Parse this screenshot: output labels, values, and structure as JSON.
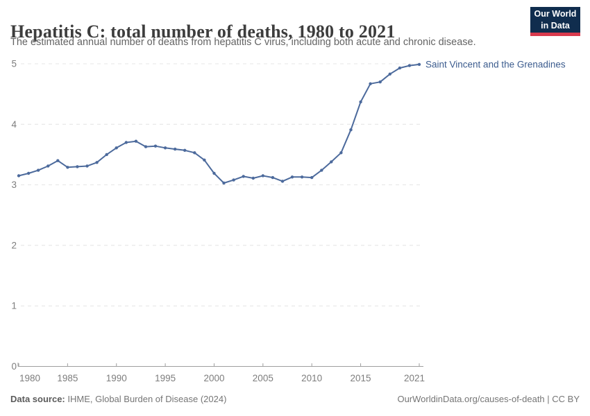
{
  "header": {
    "title": "Hepatitis C: total number of deaths, 1980 to 2021",
    "subtitle": "The estimated annual number of deaths from hepatitis C virus, including both acute and chronic disease.",
    "logo": {
      "line1": "Our World",
      "line2": "in Data",
      "bg_color": "#102d4e",
      "accent_color": "#d93a4e"
    }
  },
  "chart_data": {
    "type": "line",
    "title": "Hepatitis C: total number of deaths, 1980 to 2021",
    "xlabel": "",
    "ylabel": "",
    "xlim": [
      1980,
      2021
    ],
    "ylim": [
      0,
      5
    ],
    "xticks": [
      1980,
      1985,
      1990,
      1995,
      2000,
      2005,
      2010,
      2015,
      2021
    ],
    "yticks": [
      0,
      1,
      2,
      3,
      4,
      5
    ],
    "grid": "horizontal-dashed",
    "legend": "inline-end-label",
    "x": [
      1980,
      1981,
      1982,
      1983,
      1984,
      1985,
      1986,
      1987,
      1988,
      1989,
      1990,
      1991,
      1992,
      1993,
      1994,
      1995,
      1996,
      1997,
      1998,
      1999,
      2000,
      2001,
      2002,
      2003,
      2004,
      2005,
      2006,
      2007,
      2008,
      2009,
      2010,
      2011,
      2012,
      2013,
      2014,
      2015,
      2016,
      2017,
      2018,
      2019,
      2020,
      2021
    ],
    "series": [
      {
        "name": "Saint Vincent and the Grenadines",
        "color": "#4C6A9C",
        "values": [
          3.15,
          3.19,
          3.24,
          3.31,
          3.4,
          3.29,
          3.3,
          3.31,
          3.37,
          3.5,
          3.61,
          3.7,
          3.72,
          3.63,
          3.64,
          3.61,
          3.59,
          3.57,
          3.53,
          3.41,
          3.19,
          3.03,
          3.08,
          3.14,
          3.11,
          3.15,
          3.12,
          3.06,
          3.13,
          3.13,
          3.12,
          3.24,
          3.38,
          3.53,
          3.91,
          4.37,
          4.67,
          4.7,
          4.83,
          4.93,
          4.97,
          4.99
        ]
      }
    ]
  },
  "footer": {
    "source_label": "Data source:",
    "source_text": " IHME, Global Burden of Disease (2024)",
    "attribution": "OurWorldinData.org/causes-of-death | CC BY"
  },
  "colors": {
    "line": "#4C6A9C",
    "series_label": "#3c5c8e",
    "grid": "#e4e4e4",
    "axis": "#9e9e9e",
    "tick_label": "#7d7d7d"
  }
}
